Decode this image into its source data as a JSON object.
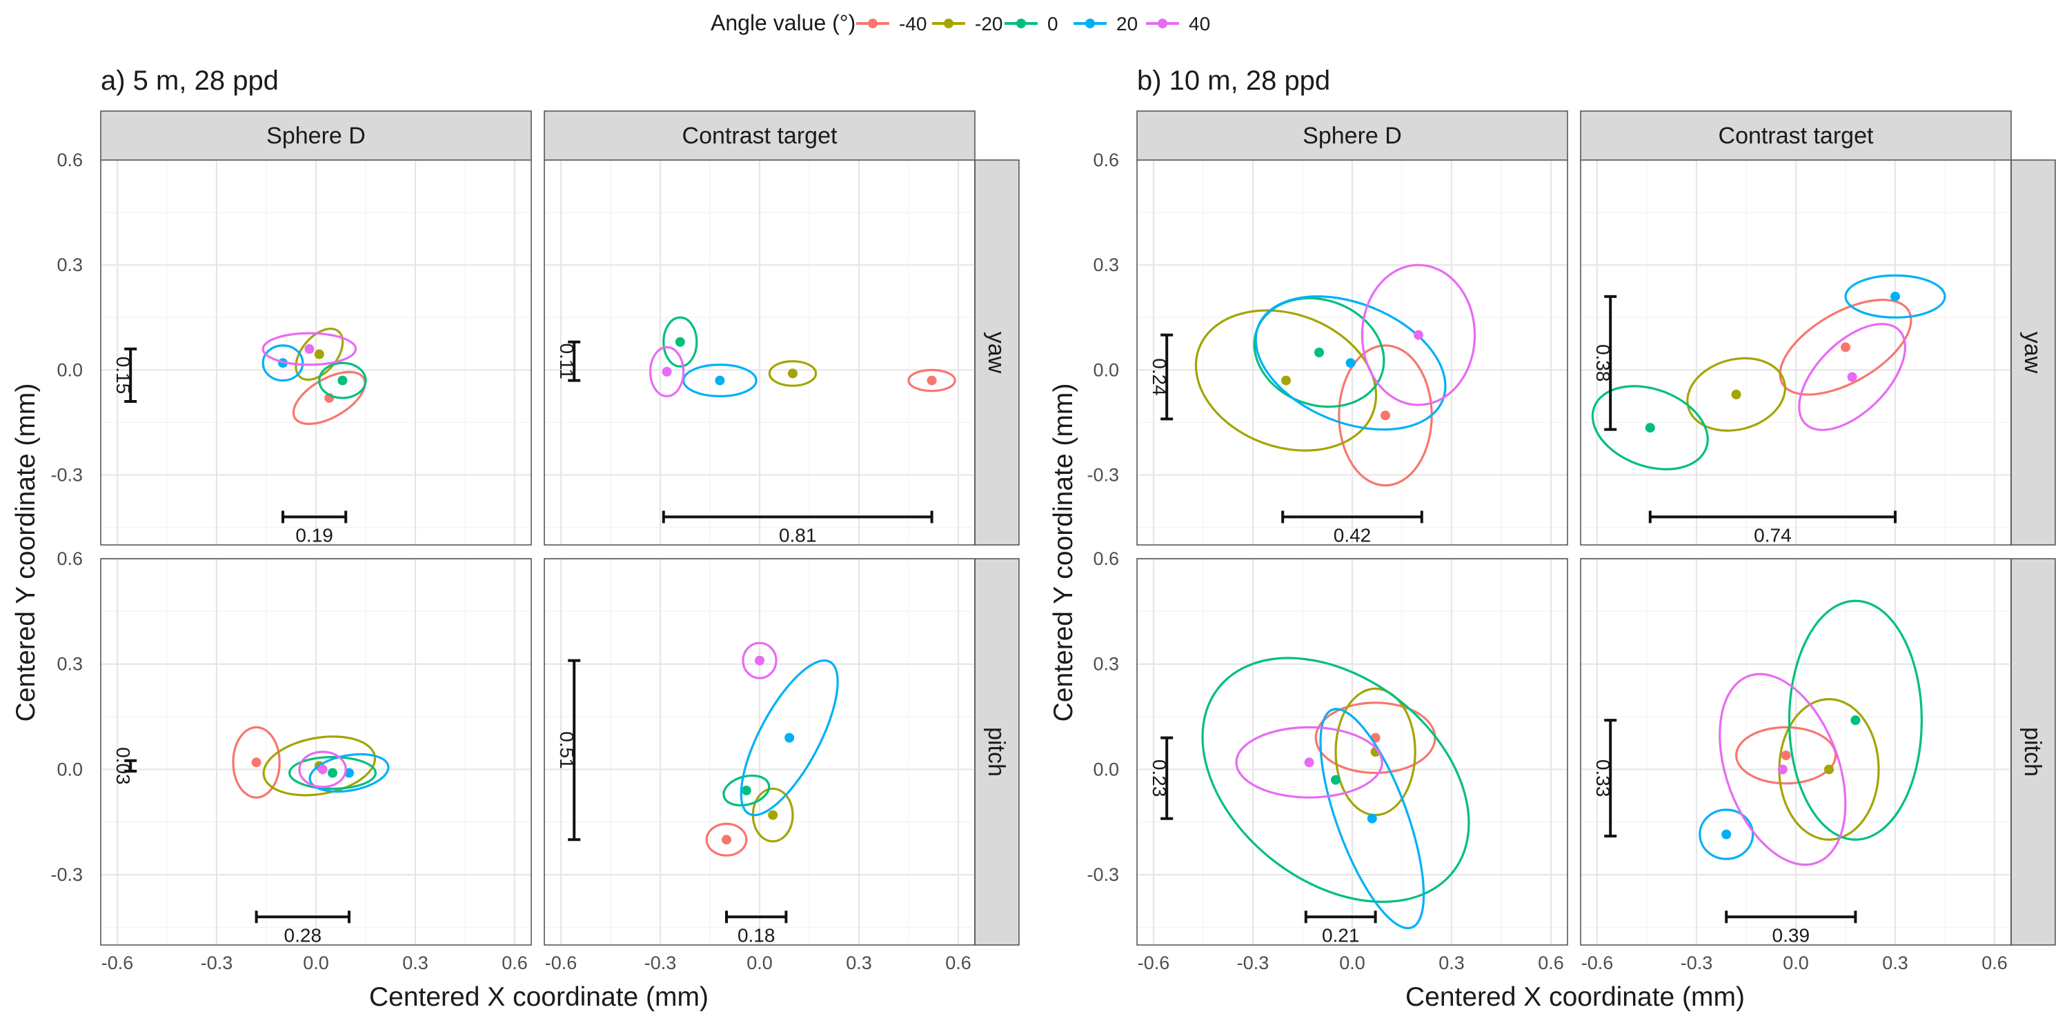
{
  "legend": {
    "title": "Angle value (°)",
    "items": [
      {
        "label": "-40",
        "color": "#F8766D"
      },
      {
        "label": "-20",
        "color": "#A3A500"
      },
      {
        "label": "0",
        "color": "#00BF7D"
      },
      {
        "label": "20",
        "color": "#00B0F6"
      },
      {
        "label": "40",
        "color": "#E76BF3"
      }
    ]
  },
  "chart_data": [
    {
      "id": "a",
      "type": "scatter",
      "title": "a)   5 m, 28 ppd",
      "xlabel": "Centered X coordinate (mm)",
      "ylabel": "Centered Y coordinate (mm)",
      "xlim": [
        -0.65,
        0.65
      ],
      "ylim": [
        -0.5,
        0.6
      ],
      "xticks": [
        -0.6,
        -0.3,
        0.0,
        0.3,
        0.6
      ],
      "xtick_labels": [
        "-0.6",
        "-0.3",
        "0.0",
        "0.3",
        "0.6"
      ],
      "yticks": [
        -0.3,
        0.0,
        0.3,
        0.6
      ],
      "ytick_labels": [
        "-0.3",
        "0.0",
        "0.3",
        "0.6"
      ],
      "columns": [
        "Sphere D",
        "Contrast target"
      ],
      "rows": [
        "yaw",
        "pitch"
      ],
      "panels": [
        {
          "col": 0,
          "row": 0,
          "points": [
            {
              "angle": -40,
              "x": 0.04,
              "y": -0.08,
              "rx": 0.12,
              "ry": 0.055,
              "rot": -30
            },
            {
              "angle": -20,
              "x": 0.01,
              "y": 0.045,
              "rx": 0.09,
              "ry": 0.05,
              "rot": -50
            },
            {
              "angle": 0,
              "x": 0.08,
              "y": -0.03,
              "rx": 0.07,
              "ry": 0.05,
              "rot": 0
            },
            {
              "angle": 20,
              "x": -0.1,
              "y": 0.02,
              "rx": 0.06,
              "ry": 0.05,
              "rot": 0
            },
            {
              "angle": 40,
              "x": -0.02,
              "y": 0.06,
              "rx": 0.14,
              "ry": 0.045,
              "rot": 0
            }
          ],
          "xrange": {
            "label": "0.19",
            "x1": -0.1,
            "x2": 0.09,
            "y": -0.42
          },
          "yrange": {
            "label": "0.15",
            "y1": -0.09,
            "y2": 0.06,
            "x": -0.56
          }
        },
        {
          "col": 1,
          "row": 0,
          "points": [
            {
              "angle": -40,
              "x": 0.52,
              "y": -0.03,
              "rx": 0.07,
              "ry": 0.03,
              "rot": 0
            },
            {
              "angle": -20,
              "x": 0.1,
              "y": -0.01,
              "rx": 0.07,
              "ry": 0.035,
              "rot": 0
            },
            {
              "angle": 0,
              "x": -0.24,
              "y": 0.08,
              "rx": 0.05,
              "ry": 0.07,
              "rot": 0
            },
            {
              "angle": 20,
              "x": -0.12,
              "y": -0.03,
              "rx": 0.11,
              "ry": 0.045,
              "rot": 0
            },
            {
              "angle": 40,
              "x": -0.28,
              "y": -0.005,
              "rx": 0.05,
              "ry": 0.07,
              "rot": 0
            }
          ],
          "xrange": {
            "label": "0.81",
            "x1": -0.29,
            "x2": 0.52,
            "y": -0.42
          },
          "yrange": {
            "label": "0.11",
            "y1": -0.03,
            "y2": 0.08,
            "x": -0.56
          }
        },
        {
          "col": 0,
          "row": 1,
          "points": [
            {
              "angle": -40,
              "x": -0.18,
              "y": 0.02,
              "rx": 0.07,
              "ry": 0.1,
              "rot": 0
            },
            {
              "angle": -20,
              "x": 0.01,
              "y": 0.01,
              "rx": 0.17,
              "ry": 0.08,
              "rot": -10
            },
            {
              "angle": 0,
              "x": 0.05,
              "y": -0.01,
              "rx": 0.13,
              "ry": 0.045,
              "rot": 0
            },
            {
              "angle": 20,
              "x": 0.1,
              "y": -0.01,
              "rx": 0.12,
              "ry": 0.05,
              "rot": -10
            },
            {
              "angle": 40,
              "x": 0.02,
              "y": 0.0,
              "rx": 0.07,
              "ry": 0.05,
              "rot": 0
            }
          ],
          "xrange": {
            "label": "0.28",
            "x1": -0.18,
            "x2": 0.1,
            "y": -0.42
          },
          "yrange": {
            "label": "0.03",
            "y1": -0.005,
            "y2": 0.025,
            "x": -0.56
          }
        },
        {
          "col": 1,
          "row": 1,
          "points": [
            {
              "angle": -40,
              "x": -0.1,
              "y": -0.2,
              "rx": 0.06,
              "ry": 0.045,
              "rot": 0
            },
            {
              "angle": -20,
              "x": 0.04,
              "y": -0.13,
              "rx": 0.06,
              "ry": 0.075,
              "rot": 0
            },
            {
              "angle": 0,
              "x": -0.04,
              "y": -0.06,
              "rx": 0.07,
              "ry": 0.04,
              "rot": -15
            },
            {
              "angle": 20,
              "x": 0.09,
              "y": 0.09,
              "rx": 0.26,
              "ry": 0.085,
              "rot": -62
            },
            {
              "angle": 40,
              "x": 0.0,
              "y": 0.31,
              "rx": 0.05,
              "ry": 0.05,
              "rot": 0
            }
          ],
          "xrange": {
            "label": "0.18",
            "x1": -0.1,
            "x2": 0.08,
            "y": -0.42
          },
          "yrange": {
            "label": "0.51",
            "y1": -0.2,
            "y2": 0.31,
            "x": -0.56
          }
        }
      ]
    },
    {
      "id": "b",
      "type": "scatter",
      "title": "b)   10 m, 28 ppd",
      "xlabel": "Centered X coordinate (mm)",
      "ylabel": "Centered Y coordinate (mm)",
      "xlim": [
        -0.65,
        0.65
      ],
      "ylim": [
        -0.5,
        0.6
      ],
      "xticks": [
        -0.6,
        -0.3,
        0.0,
        0.3,
        0.6
      ],
      "xtick_labels": [
        "-0.6",
        "-0.3",
        "0.0",
        "0.3",
        "0.6"
      ],
      "yticks": [
        -0.3,
        0.0,
        0.3,
        0.6
      ],
      "ytick_labels": [
        "-0.3",
        "0.0",
        "0.3",
        "0.6"
      ],
      "columns": [
        "Sphere D",
        "Contrast target"
      ],
      "rows": [
        "yaw",
        "pitch"
      ],
      "panels": [
        {
          "col": 0,
          "row": 0,
          "points": [
            {
              "angle": -40,
              "x": 0.1,
              "y": -0.13,
              "rx": 0.14,
              "ry": 0.2,
              "rot": 0
            },
            {
              "angle": -20,
              "x": -0.2,
              "y": -0.03,
              "rx": 0.28,
              "ry": 0.19,
              "rot": 20
            },
            {
              "angle": 0,
              "x": -0.1,
              "y": 0.05,
              "rx": 0.2,
              "ry": 0.15,
              "rot": 20
            },
            {
              "angle": 20,
              "x": -0.005,
              "y": 0.02,
              "rx": 0.3,
              "ry": 0.17,
              "rot": 22
            },
            {
              "angle": 40,
              "x": 0.2,
              "y": 0.1,
              "rx": 0.17,
              "ry": 0.2,
              "rot": 0
            }
          ],
          "xrange": {
            "label": "0.42",
            "x1": -0.21,
            "x2": 0.21,
            "y": -0.42
          },
          "yrange": {
            "label": "0.24",
            "y1": -0.14,
            "y2": 0.1,
            "x": -0.56
          }
        },
        {
          "col": 1,
          "row": 0,
          "points": [
            {
              "angle": -40,
              "x": 0.15,
              "y": 0.065,
              "rx": 0.22,
              "ry": 0.1,
              "rot": -30
            },
            {
              "angle": -20,
              "x": -0.18,
              "y": -0.07,
              "rx": 0.15,
              "ry": 0.1,
              "rot": -15
            },
            {
              "angle": 0,
              "x": -0.44,
              "y": -0.165,
              "rx": 0.18,
              "ry": 0.11,
              "rot": 20
            },
            {
              "angle": 20,
              "x": 0.3,
              "y": 0.21,
              "rx": 0.15,
              "ry": 0.06,
              "rot": 0
            },
            {
              "angle": 40,
              "x": 0.17,
              "y": -0.02,
              "rx": 0.2,
              "ry": 0.1,
              "rot": -45
            }
          ],
          "xrange": {
            "label": "0.74",
            "x1": -0.44,
            "x2": 0.3,
            "y": -0.42
          },
          "yrange": {
            "label": "0.38",
            "y1": -0.17,
            "y2": 0.21,
            "x": -0.56
          }
        },
        {
          "col": 0,
          "row": 1,
          "points": [
            {
              "angle": -40,
              "x": 0.07,
              "y": 0.09,
              "rx": 0.18,
              "ry": 0.1,
              "rot": 0
            },
            {
              "angle": -20,
              "x": 0.07,
              "y": 0.05,
              "rx": 0.12,
              "ry": 0.18,
              "rot": 0
            },
            {
              "angle": 0,
              "x": -0.05,
              "y": -0.03,
              "rx": 0.45,
              "ry": 0.29,
              "rot": 38
            },
            {
              "angle": 20,
              "x": 0.06,
              "y": -0.14,
              "rx": 0.35,
              "ry": 0.1,
              "rot": 70
            },
            {
              "angle": 40,
              "x": -0.13,
              "y": 0.02,
              "rx": 0.22,
              "ry": 0.1,
              "rot": 0
            }
          ],
          "xrange": {
            "label": "0.21",
            "x1": -0.14,
            "x2": 0.07,
            "y": -0.42
          },
          "yrange": {
            "label": "0.23",
            "y1": -0.14,
            "y2": 0.09,
            "x": -0.56
          }
        },
        {
          "col": 1,
          "row": 1,
          "points": [
            {
              "angle": -40,
              "x": -0.03,
              "y": 0.04,
              "rx": 0.15,
              "ry": 0.08,
              "rot": 0
            },
            {
              "angle": -20,
              "x": 0.1,
              "y": 0.0,
              "rx": 0.15,
              "ry": 0.2,
              "rot": 0
            },
            {
              "angle": 0,
              "x": 0.18,
              "y": 0.14,
              "rx": 0.2,
              "ry": 0.34,
              "rot": 0
            },
            {
              "angle": 20,
              "x": -0.21,
              "y": -0.185,
              "rx": 0.08,
              "ry": 0.07,
              "rot": 0
            },
            {
              "angle": 40,
              "x": -0.04,
              "y": 0.0,
              "rx": 0.3,
              "ry": 0.16,
              "rot": 70
            }
          ],
          "xrange": {
            "label": "0.39",
            "x1": -0.21,
            "x2": 0.18,
            "y": -0.42
          },
          "yrange": {
            "label": "0.33",
            "y1": -0.19,
            "y2": 0.14,
            "x": -0.56
          }
        }
      ]
    }
  ]
}
